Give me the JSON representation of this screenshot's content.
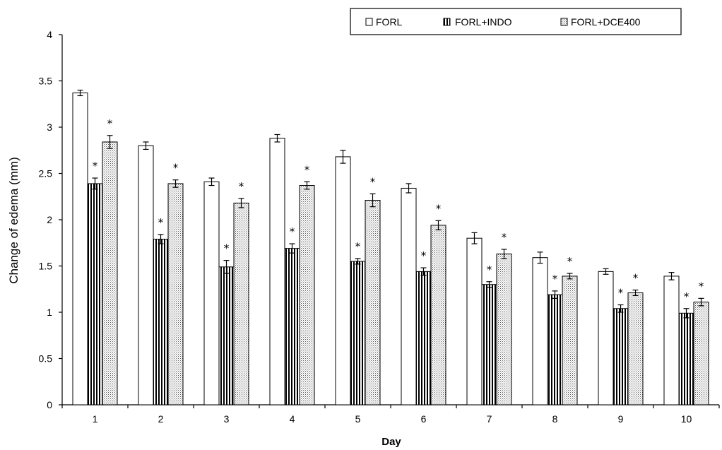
{
  "chart_data": {
    "type": "bar",
    "xlabel": "Day",
    "ylabel": "Change of edema (mm)",
    "ylim": [
      0,
      4
    ],
    "y_ticks": [
      "0",
      "0.5",
      "1",
      "1.5",
      "2",
      "2.5",
      "3",
      "3.5",
      "4"
    ],
    "categories": [
      "1",
      "2",
      "3",
      "4",
      "5",
      "6",
      "7",
      "8",
      "9",
      "10"
    ],
    "series": [
      {
        "name": "FORL",
        "pattern": "empty",
        "values": [
          3.37,
          2.8,
          2.41,
          2.88,
          2.68,
          2.34,
          1.8,
          1.59,
          1.44,
          1.39
        ],
        "errors": [
          0.03,
          0.04,
          0.04,
          0.04,
          0.07,
          0.05,
          0.06,
          0.06,
          0.03,
          0.04
        ],
        "markers": [
          "",
          "",
          "",
          "",
          "",
          "",
          "",
          "",
          "",
          ""
        ]
      },
      {
        "name": "FORL+INDO",
        "pattern": "vertical-stripes",
        "values": [
          2.39,
          1.79,
          1.49,
          1.69,
          1.55,
          1.44,
          1.3,
          1.19,
          1.04,
          0.99
        ],
        "errors": [
          0.06,
          0.05,
          0.07,
          0.05,
          0.03,
          0.04,
          0.03,
          0.04,
          0.04,
          0.05
        ],
        "markers": [
          "*",
          "*",
          "*",
          "*",
          "*",
          "*",
          "*",
          "*",
          "*",
          "*"
        ]
      },
      {
        "name": "FORL+DCE400",
        "pattern": "dots",
        "values": [
          2.84,
          2.39,
          2.18,
          2.37,
          2.21,
          1.94,
          1.63,
          1.39,
          1.21,
          1.11
        ],
        "errors": [
          0.07,
          0.04,
          0.05,
          0.04,
          0.07,
          0.05,
          0.05,
          0.03,
          0.03,
          0.04
        ],
        "markers": [
          "*",
          "*",
          "*",
          "*",
          "*",
          "*",
          "*",
          "*",
          "*",
          "*"
        ]
      }
    ],
    "legend_position": "top-right",
    "grid": false
  }
}
